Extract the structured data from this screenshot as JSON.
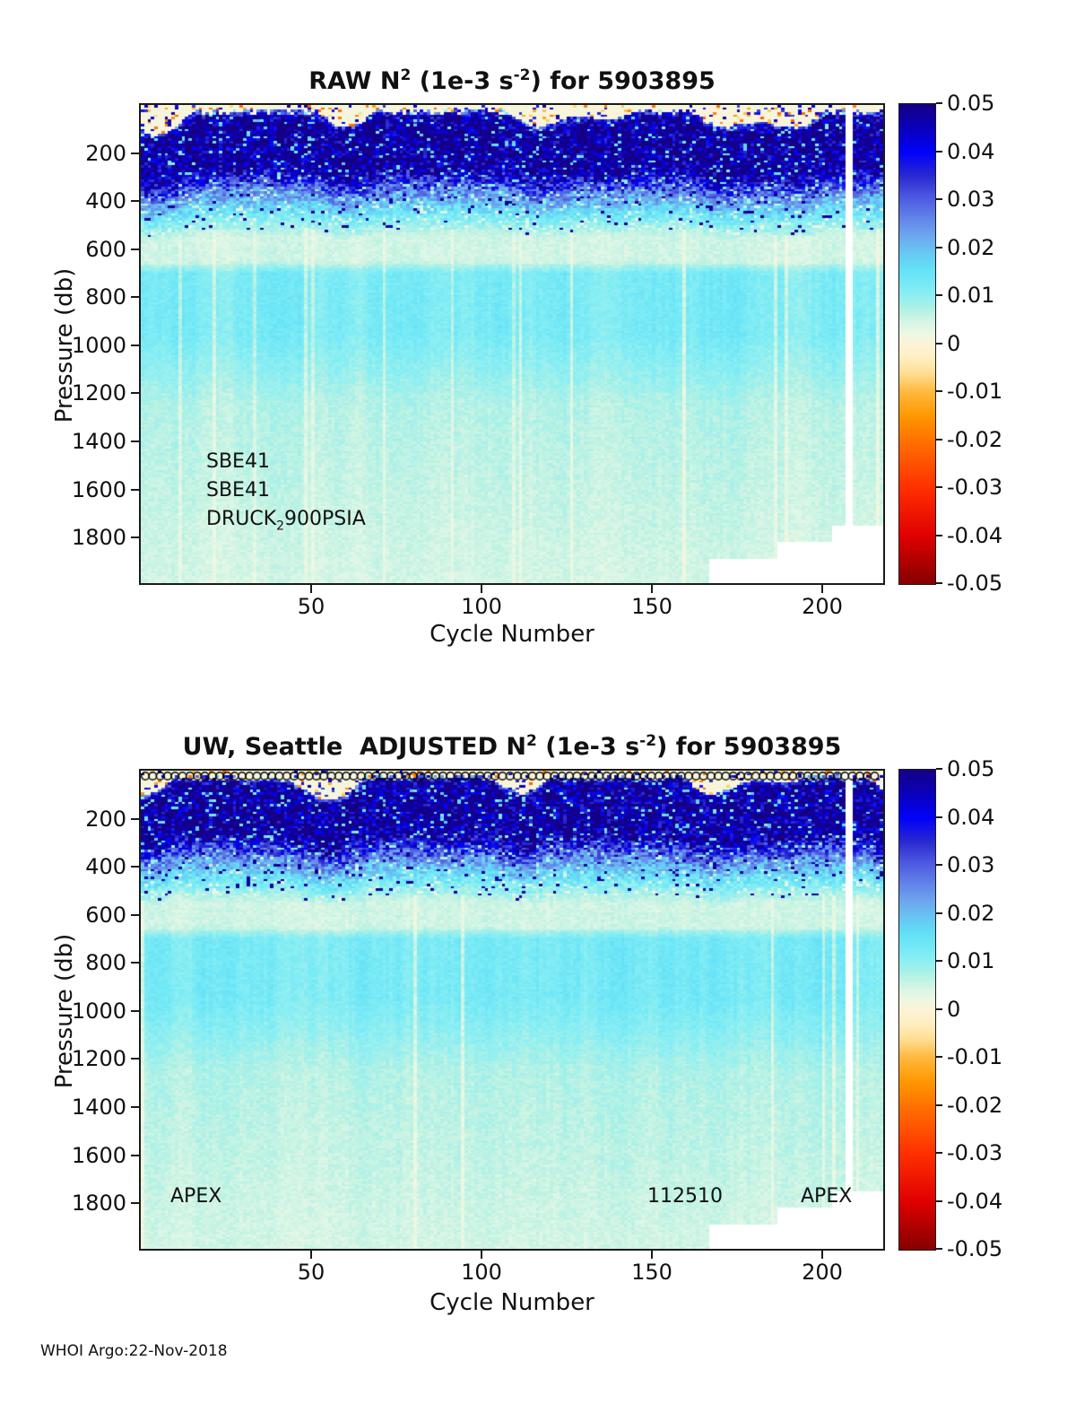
{
  "page": {
    "footer_text": "WHOI Argo:22-Nov-2018"
  },
  "colormap": [
    [
      -0.05,
      "#870000"
    ],
    [
      -0.04,
      "#e00000"
    ],
    [
      -0.03,
      "#ff3000"
    ],
    [
      -0.02,
      "#ff7300"
    ],
    [
      -0.015,
      "#ff9800"
    ],
    [
      -0.01,
      "#ffb93e"
    ],
    [
      -0.006,
      "#ffdf96"
    ],
    [
      -0.003,
      "#ffeec0"
    ],
    [
      0,
      "#fdf3d6"
    ],
    [
      0.002,
      "#edf8e2"
    ],
    [
      0.004,
      "#dcf6e6"
    ],
    [
      0.006,
      "#c4f3e3"
    ],
    [
      0.008,
      "#a8f0e8"
    ],
    [
      0.01,
      "#8feff2"
    ],
    [
      0.013,
      "#74e9f6"
    ],
    [
      0.016,
      "#63dff7"
    ],
    [
      0.019,
      "#67c8f3"
    ],
    [
      0.023,
      "#6da3ee"
    ],
    [
      0.027,
      "#5f7de8"
    ],
    [
      0.031,
      "#4b55e0"
    ],
    [
      0.035,
      "#2a2ad0"
    ],
    [
      0.04,
      "#0202fa"
    ],
    [
      0.045,
      "#0a00bd"
    ],
    [
      0.05,
      "#150085"
    ]
  ],
  "chart_data": [
    {
      "type": "heatmap",
      "title": {
        "prefix": "RAW N",
        "exp1": "2",
        "mid": " (1e-3 s",
        "exp2": "-2",
        "suffix": ") for 5903895"
      },
      "xlabel": "Cycle Number",
      "ylabel": "Pressure (db)",
      "x_range": [
        1,
        218
      ],
      "y_range": [
        0,
        1990
      ],
      "x_ticks": [
        50,
        100,
        150,
        200
      ],
      "y_ticks": [
        200,
        400,
        600,
        800,
        1000,
        1200,
        1400,
        1600,
        1800
      ],
      "colorbar_ticks": [
        "0.05",
        "0.04",
        "0.03",
        "0.02",
        "0.01",
        "0",
        "-0.01",
        "-0.02",
        "-0.03",
        "-0.04",
        "-0.05"
      ],
      "colorbar_range": [
        -0.05,
        0.05
      ],
      "mean_profile_db_value": [
        [
          0,
          0.01
        ],
        [
          20,
          0.028
        ],
        [
          40,
          0.044
        ],
        [
          60,
          0.048
        ],
        [
          250,
          0.047
        ],
        [
          300,
          0.036
        ],
        [
          360,
          0.024
        ],
        [
          430,
          0.015
        ],
        [
          490,
          0.009
        ],
        [
          545,
          0.0048
        ],
        [
          650,
          0.0048
        ],
        [
          700,
          0.012
        ],
        [
          950,
          0.012
        ],
        [
          1250,
          0.007
        ],
        [
          1990,
          0.0045
        ]
      ],
      "missing_columns_cycles": [
        208,
        209
      ],
      "missing_bottom_steps": [
        [
          168,
          1890
        ],
        [
          188,
          1820
        ],
        [
          204,
          1750
        ]
      ],
      "annotation_line1": "SBE41",
      "annotation_line2": "SBE41",
      "annotation_druck": {
        "prefix": "DRUCK",
        "sub": "2",
        "suffix": "900PSIA"
      },
      "top_marker_row": false
    },
    {
      "type": "heatmap",
      "title": {
        "prefix": "UW, Seattle  ADJUSTED N",
        "exp1": "2",
        "mid": " (1e-3 s",
        "exp2": "-2",
        "suffix": ") for 5903895"
      },
      "xlabel": "Cycle Number",
      "ylabel": "Pressure (db)",
      "x_range": [
        1,
        218
      ],
      "y_range": [
        0,
        1990
      ],
      "x_ticks": [
        50,
        100,
        150,
        200
      ],
      "y_ticks": [
        200,
        400,
        600,
        800,
        1000,
        1200,
        1400,
        1600,
        1800
      ],
      "colorbar_ticks": [
        "0.05",
        "0.04",
        "0.03",
        "0.02",
        "0.01",
        "0",
        "-0.01",
        "-0.02",
        "-0.03",
        "-0.04",
        "-0.05"
      ],
      "colorbar_range": [
        -0.05,
        0.05
      ],
      "mean_profile_db_value": [
        [
          0,
          0.01
        ],
        [
          20,
          0.028
        ],
        [
          40,
          0.044
        ],
        [
          60,
          0.048
        ],
        [
          250,
          0.047
        ],
        [
          300,
          0.036
        ],
        [
          360,
          0.024
        ],
        [
          430,
          0.015
        ],
        [
          490,
          0.009
        ],
        [
          545,
          0.0048
        ],
        [
          650,
          0.0048
        ],
        [
          700,
          0.012
        ],
        [
          950,
          0.012
        ],
        [
          1250,
          0.007
        ],
        [
          1990,
          0.0045
        ]
      ],
      "missing_columns_cycles": [
        208,
        209
      ],
      "missing_bottom_steps": [
        [
          168,
          1890
        ],
        [
          188,
          1820
        ],
        [
          204,
          1750
        ]
      ],
      "annotation_left": "APEX",
      "annotation_center": "112510",
      "annotation_right": "APEX",
      "top_marker_row": true
    }
  ]
}
